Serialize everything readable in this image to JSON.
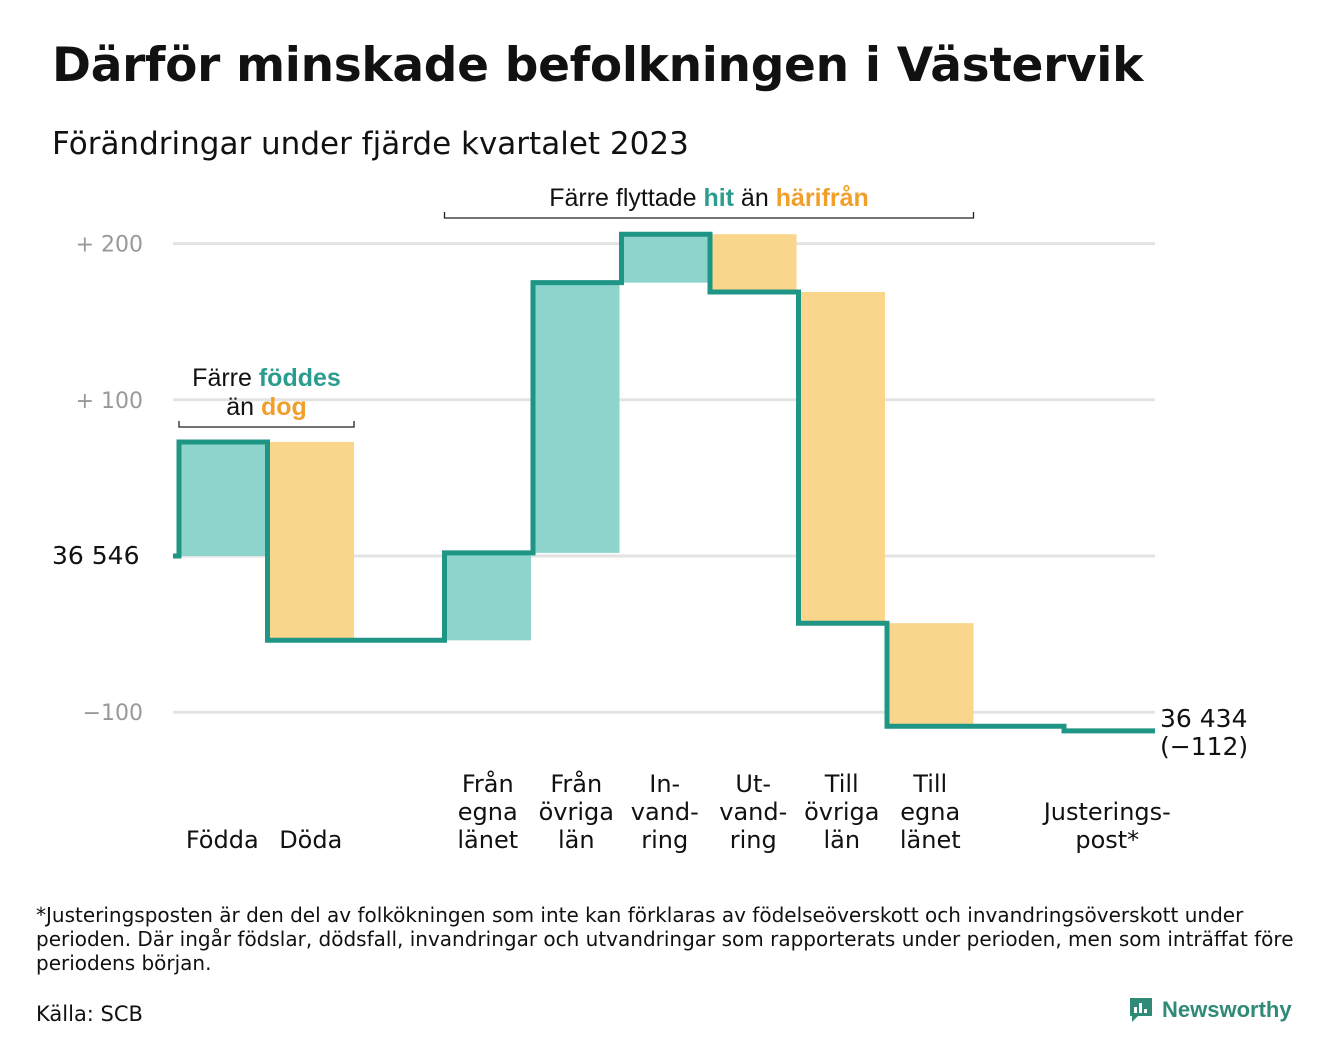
{
  "title": "Därför minskade befolkningen i Västervik",
  "subtitle": "Förändringar under fjärde kvartalet 2023",
  "chart_data": {
    "type": "waterfall",
    "start_value": 36546,
    "start_label": "36 546",
    "end_value": 36434,
    "end_label": "36 434",
    "end_change_label": "(−112)",
    "ylim": [
      -118,
      212
    ],
    "yticks": [
      {
        "value": 200,
        "label": "+ 200"
      },
      {
        "value": 100,
        "label": "+ 100"
      },
      {
        "value": 0,
        "label": "36 546"
      },
      {
        "value": -100,
        "label": "−100"
      }
    ],
    "steps": [
      {
        "label_lines": [
          "Födda"
        ],
        "change": 73,
        "kind": "in"
      },
      {
        "label_lines": [
          "Döda"
        ],
        "change": -127,
        "kind": "out"
      },
      {
        "label_lines": [],
        "change": 0,
        "kind": "gap"
      },
      {
        "label_lines": [
          "Från",
          "egna",
          "länet"
        ],
        "change": 56,
        "kind": "in"
      },
      {
        "label_lines": [
          "Från",
          "övriga",
          "län"
        ],
        "change": 173,
        "kind": "in"
      },
      {
        "label_lines": [
          "In-",
          "vand-",
          "ring"
        ],
        "change": 31,
        "kind": "in"
      },
      {
        "label_lines": [
          "Ut-",
          "vand-",
          "ring"
        ],
        "change": -37,
        "kind": "out"
      },
      {
        "label_lines": [
          "Till",
          "övriga",
          "län"
        ],
        "change": -212,
        "kind": "out"
      },
      {
        "label_lines": [
          "Till",
          "egna",
          "länet"
        ],
        "change": -66,
        "kind": "out"
      },
      {
        "label_lines": [],
        "change": 0,
        "kind": "gap"
      },
      {
        "label_lines": [
          "Justerings-",
          "post*"
        ],
        "change": -3,
        "kind": "adjust"
      }
    ],
    "annotations": [
      {
        "lines": [
          [
            {
              "text": "Färre ",
              "color": "#111111"
            },
            {
              "text": "föddes",
              "color": "#2a9d8f",
              "bold": true
            }
          ],
          [
            {
              "text": "än ",
              "color": "#111111"
            },
            {
              "text": "dog",
              "color": "#f0a02a",
              "bold": true
            }
          ]
        ],
        "from_step": 0,
        "to_step": 1
      },
      {
        "lines": [
          [
            {
              "text": "Färre flyttade ",
              "color": "#111111"
            },
            {
              "text": "hit",
              "color": "#2a9d8f",
              "bold": true
            },
            {
              "text": " än ",
              "color": "#111111"
            },
            {
              "text": "härifrån",
              "color": "#f0a02a",
              "bold": true
            }
          ]
        ],
        "from_step": 3,
        "to_step": 8
      }
    ],
    "colors": {
      "in_fill": "#8dd5cc",
      "out_fill": "#fad58c",
      "line": "#1f9585",
      "grid": "#e3e3e3",
      "tick_text": "#999999"
    }
  },
  "footnote": "*Justeringsposten är den del av folkökningen som inte kan förklaras av födelseöverskott och invandringsöverskott under perioden. Där ingår födslar, dödsfall, invandringar och utvandringar som rapporterats under perioden, men som inträffat före periodens början.",
  "source": "Källa: SCB",
  "brand": "Newsworthy",
  "brand_icon": "bar-chart-icon"
}
